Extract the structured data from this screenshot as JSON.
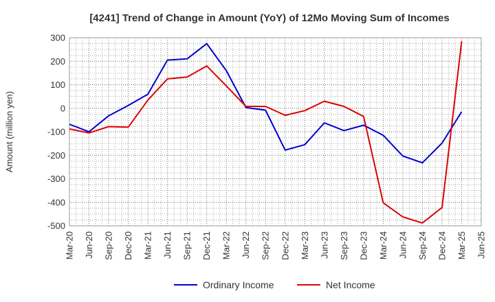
{
  "chart_data": {
    "type": "line",
    "title": "[4241]  Trend of Change in Amount (YoY) of 12Mo Moving Sum of Incomes",
    "xlabel": "",
    "ylabel": "Amount (million yen)",
    "ylim": [
      -500,
      300
    ],
    "yticks": [
      300,
      200,
      100,
      0,
      -100,
      -200,
      -300,
      -400,
      -500
    ],
    "categories": [
      "Mar-20",
      "Jun-20",
      "Sep-20",
      "Dec-20",
      "Mar-21",
      "Jun-21",
      "Sep-21",
      "Dec-21",
      "Mar-22",
      "Jun-22",
      "Sep-22",
      "Dec-22",
      "Mar-23",
      "Jun-23",
      "Sep-23",
      "Dec-23",
      "Mar-24",
      "Jun-24",
      "Sep-24",
      "Dec-24",
      "Mar-25",
      "Jun-25"
    ],
    "grid": true,
    "legend_position": "bottom",
    "series": [
      {
        "name": "Ordinary Income",
        "color": "#0000cc",
        "values": [
          -68,
          -100,
          -32,
          12,
          60,
          205,
          210,
          275,
          160,
          3,
          -8,
          -178,
          -155,
          -62,
          -95,
          -72,
          -115,
          -203,
          -232,
          -148,
          -15,
          null
        ]
      },
      {
        "name": "Net Income",
        "color": "#dd0000",
        "values": [
          -88,
          -105,
          -78,
          -80,
          35,
          125,
          133,
          180,
          95,
          8,
          8,
          -30,
          -10,
          30,
          8,
          -35,
          -402,
          -462,
          -488,
          -422,
          285,
          null
        ]
      }
    ]
  }
}
